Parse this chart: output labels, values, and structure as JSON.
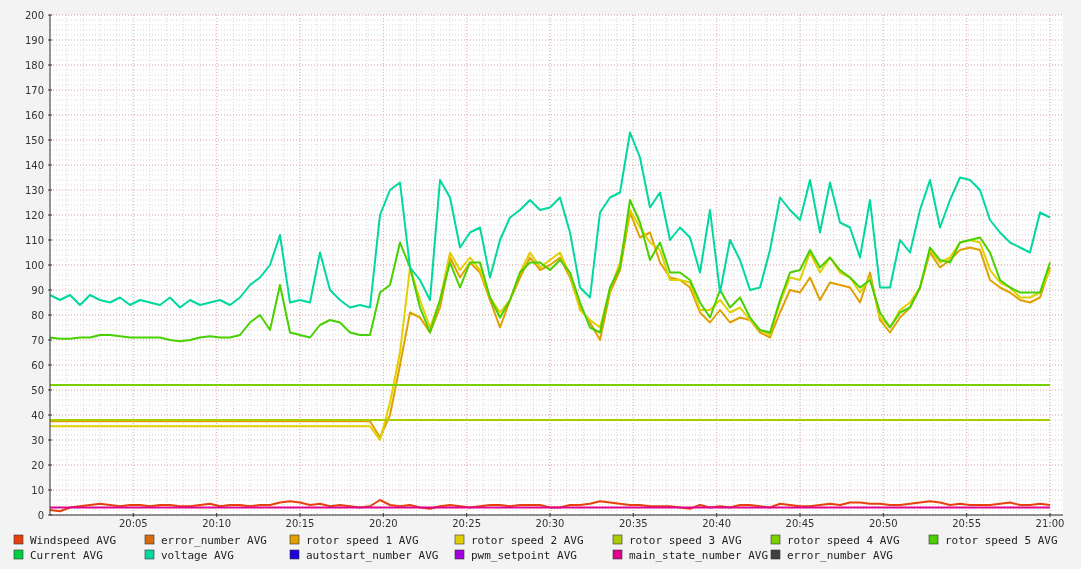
{
  "chart_data": {
    "type": "line",
    "x": [
      20,
      20.01,
      20.02,
      20.03,
      20.04,
      20.05,
      20.06,
      20.07,
      20.08,
      20.09,
      20.1,
      20.11,
      20.12,
      20.13,
      20.14,
      20.15,
      20.16,
      20.17,
      20.18,
      20.19,
      20.2,
      20.21,
      20.22,
      20.23,
      20.24,
      20.25,
      20.26,
      20.27,
      20.28,
      20.29,
      20.3,
      20.31,
      20.32,
      20.33,
      20.34,
      20.35,
      20.36,
      20.37,
      20.38,
      20.39,
      20.4,
      20.41,
      20.42,
      20.43,
      20.44,
      20.45,
      20.46,
      20.47,
      20.48,
      20.49,
      20.5,
      20.51,
      20.52,
      20.53,
      20.54,
      20.55,
      20.56,
      20.57,
      20.58,
      20.59,
      20.6,
      20.61,
      20.62,
      20.63,
      20.64,
      20.65,
      20.66,
      20.67,
      20.68,
      20.69,
      20.7,
      20.71,
      20.72,
      20.73,
      20.74,
      20.75,
      20.76,
      20.77,
      20.78,
      20.79,
      20.8,
      20.81,
      20.82,
      20.83,
      20.84,
      20.85,
      20.86,
      20.87,
      20.88,
      20.89,
      20.9,
      20.91,
      20.92,
      20.93,
      20.94,
      20.95,
      20.96,
      20.97,
      20.98,
      20.99,
      21
    ],
    "series": [
      {
        "name": "Windspeed AVG",
        "color": "#e8400c",
        "values": [
          2,
          1.5,
          3,
          3.5,
          4,
          4.5,
          4,
          3.5,
          4,
          4,
          3.5,
          4,
          4,
          3.5,
          3.5,
          4,
          4.5,
          3.5,
          4,
          4,
          3.5,
          4,
          4,
          5,
          5.5,
          5,
          4,
          4.5,
          3.5,
          4,
          3.5,
          3,
          3.5,
          6,
          4,
          3.5,
          4,
          3,
          2.5,
          3.5,
          4,
          3.5,
          3,
          3.5,
          4,
          4,
          3.5,
          4,
          4,
          4,
          3,
          3,
          4,
          4,
          4.5,
          5.5,
          5,
          4.5,
          4,
          4,
          3.5,
          3.5,
          3.5,
          3,
          2.5,
          4,
          3,
          3.5,
          3,
          4,
          4,
          3.5,
          3,
          4.5,
          4,
          3.5,
          3.5,
          4,
          4.5,
          4,
          5,
          5,
          4.5,
          4.5,
          4,
          4,
          4.5,
          5,
          5.5,
          5,
          4,
          4.5,
          4,
          4,
          4,
          4.5,
          5,
          4,
          4,
          4.5,
          4
        ]
      },
      {
        "name": "error_number AVG",
        "color": "#d86a10",
        "values": [
          null,
          null,
          null,
          null,
          null,
          null,
          null,
          null,
          null,
          null,
          null,
          null,
          null,
          null,
          null,
          null,
          null,
          null,
          null,
          null,
          null,
          null,
          null,
          null,
          null,
          null,
          null,
          null,
          null,
          null,
          null,
          null,
          null,
          null,
          null,
          null,
          null,
          null,
          null,
          null,
          null,
          null,
          null,
          null,
          null,
          null,
          null,
          null,
          null,
          null,
          null,
          null,
          null,
          null,
          null,
          null,
          null,
          null,
          null,
          null,
          null,
          null,
          null,
          null,
          null,
          null,
          null,
          null,
          null,
          null,
          null,
          null,
          null,
          null,
          null,
          null,
          null,
          null,
          null,
          null,
          null,
          null,
          null,
          null,
          null,
          null,
          null,
          null,
          null,
          null,
          null,
          null,
          null,
          null,
          null,
          null,
          null,
          null,
          null,
          null,
          null
        ]
      },
      {
        "name": "rotor speed 1 AVG",
        "color": "#e0a000",
        "values": [
          37.5,
          37.5,
          37.5,
          37.5,
          37.5,
          37.5,
          37.5,
          37.5,
          37.5,
          37.5,
          37.5,
          37.5,
          37.5,
          37.5,
          37.5,
          37.5,
          37.5,
          37.5,
          37.5,
          37.5,
          37.5,
          37.5,
          37.5,
          37.5,
          37.5,
          37.5,
          37.5,
          37.5,
          37.5,
          37.5,
          37.5,
          37.5,
          37.5,
          31,
          40,
          60,
          81,
          79,
          73,
          83,
          103,
          95,
          101,
          97,
          86,
          75,
          86,
          95,
          103,
          98,
          100,
          103,
          95,
          83,
          77,
          70,
          89,
          98,
          121,
          111,
          113,
          101,
          95,
          94,
          91,
          81,
          77,
          82,
          77,
          79,
          78,
          73,
          71,
          81,
          90,
          89,
          95,
          86,
          93,
          92,
          91,
          85,
          97,
          78,
          73,
          79,
          83,
          91,
          105,
          99,
          102,
          106,
          107,
          106,
          94,
          91,
          89,
          86,
          85,
          87,
          99
        ]
      },
      {
        "name": "rotor speed 2 AVG",
        "color": "#e0d000",
        "values": [
          35.5,
          35.5,
          35.5,
          35.5,
          35.5,
          35.5,
          35.5,
          35.5,
          35.5,
          35.5,
          35.5,
          35.5,
          35.5,
          35.5,
          35.5,
          35.5,
          35.5,
          35.5,
          35.5,
          35.5,
          35.5,
          35.5,
          35.5,
          35.5,
          35.5,
          35.5,
          35.5,
          35.5,
          35.5,
          35.5,
          35.5,
          35.5,
          35.5,
          30,
          45,
          65,
          99,
          86,
          75,
          86,
          105,
          98,
          103,
          98,
          87,
          81,
          86,
          97,
          105,
          99,
          102,
          105,
          96,
          82,
          78,
          75,
          90,
          101,
          122,
          115,
          109,
          106,
          94,
          94,
          93,
          82,
          82,
          86,
          81,
          83,
          78,
          74,
          72,
          85,
          95,
          94,
          105,
          97,
          103,
          97,
          95,
          89,
          95,
          79,
          75,
          82,
          85,
          91,
          106,
          101,
          103,
          109,
          110,
          109,
          98,
          93,
          91,
          87,
          87,
          89,
          98
        ]
      },
      {
        "name": "rotor speed 3 AVG",
        "color": "#a8cc00",
        "values": [
          38,
          38,
          38,
          38,
          38,
          38,
          38,
          38,
          38,
          38,
          38,
          38,
          38,
          38,
          38,
          38,
          38,
          38,
          38,
          38,
          38,
          38,
          38,
          38,
          38,
          38,
          38,
          38,
          38,
          38,
          38,
          38,
          38,
          38,
          38,
          38,
          38,
          38,
          38,
          38,
          38,
          38,
          38,
          38,
          38,
          38,
          38,
          38,
          38,
          38,
          38,
          38,
          38,
          38,
          38,
          38,
          38,
          38,
          38,
          38,
          38,
          38,
          38,
          38,
          38,
          38,
          38,
          38,
          38,
          38,
          38,
          38,
          38,
          38,
          38,
          38,
          38,
          38,
          38,
          38,
          38,
          38,
          38,
          38,
          38,
          38,
          38,
          38,
          38,
          38,
          38,
          38,
          38,
          38,
          38,
          38,
          38,
          38,
          38,
          38,
          38
        ]
      },
      {
        "name": "rotor speed 4 AVG",
        "color": "#78d000",
        "values": [
          52,
          52,
          52,
          52,
          52,
          52,
          52,
          52,
          52,
          52,
          52,
          52,
          52,
          52,
          52,
          52,
          52,
          52,
          52,
          52,
          52,
          52,
          52,
          52,
          52,
          52,
          52,
          52,
          52,
          52,
          52,
          52,
          52,
          52,
          52,
          52,
          52,
          52,
          52,
          52,
          52,
          52,
          52,
          52,
          52,
          52,
          52,
          52,
          52,
          52,
          52,
          52,
          52,
          52,
          52,
          52,
          52,
          52,
          52,
          52,
          52,
          52,
          52,
          52,
          52,
          52,
          52,
          52,
          52,
          52,
          52,
          52,
          52,
          52,
          52,
          52,
          52,
          52,
          52,
          52,
          52,
          52,
          52,
          52,
          52,
          52,
          52,
          52,
          52,
          52,
          52,
          52,
          52,
          52,
          52,
          52,
          52,
          52,
          52,
          52,
          52
        ]
      },
      {
        "name": "rotor speed 5 AVG",
        "color": "#48d000",
        "values": [
          71,
          70.5,
          70.5,
          71,
          71,
          72,
          72,
          71.5,
          71,
          71,
          71,
          71,
          70,
          69.5,
          70,
          71,
          71.5,
          71,
          71,
          72,
          77,
          80,
          74,
          92,
          73,
          72,
          71,
          76,
          78,
          77,
          73,
          72,
          72,
          89,
          92,
          109,
          99,
          83,
          73,
          86,
          101,
          91,
          101,
          101,
          87,
          79,
          86,
          97,
          101,
          101,
          98,
          102,
          97,
          85,
          75,
          73,
          91,
          99,
          126,
          117,
          102,
          109,
          97,
          97,
          94,
          85,
          79,
          90,
          83,
          87,
          79,
          74,
          73,
          86,
          97,
          98,
          106,
          99,
          103,
          98,
          95,
          91,
          94,
          81,
          75,
          81,
          83,
          91,
          107,
          102,
          101,
          109,
          110,
          111,
          105,
          94,
          91,
          89,
          89,
          89,
          101
        ]
      },
      {
        "name": "Current AVG",
        "color": "#00d040",
        "values": [
          null,
          null,
          null,
          null,
          null,
          null,
          null,
          null,
          null,
          null,
          null,
          null,
          null,
          null,
          null,
          null,
          null,
          null,
          null,
          null,
          null,
          null,
          null,
          null,
          null,
          null,
          null,
          null,
          null,
          null,
          null,
          null,
          null,
          null,
          null,
          null,
          null,
          null,
          null,
          null,
          null,
          null,
          null,
          null,
          null,
          null,
          null,
          null,
          null,
          null,
          null,
          null,
          null,
          null,
          null,
          null,
          null,
          null,
          null,
          null,
          null,
          null,
          null,
          null,
          null,
          null,
          null,
          null,
          null,
          null,
          null,
          null,
          null,
          null,
          null,
          null,
          null,
          null,
          null,
          null,
          null,
          null,
          null,
          null,
          null,
          null,
          null,
          null,
          null,
          null,
          null,
          null,
          null,
          null,
          null,
          null,
          null,
          null,
          null,
          null,
          null
        ]
      },
      {
        "name": "voltage AVG",
        "color": "#00d8a0",
        "values": [
          88,
          86,
          88,
          84,
          88,
          86,
          85,
          87,
          84,
          86,
          85,
          84,
          87,
          83,
          86,
          84,
          85,
          86,
          84,
          87,
          92,
          95,
          100,
          112,
          85,
          86,
          85,
          105,
          90,
          86,
          83,
          84,
          83,
          120,
          130,
          133,
          99,
          94,
          86,
          134,
          127,
          107,
          113,
          115,
          95,
          110,
          119,
          122,
          126,
          122,
          123,
          127,
          113,
          91,
          87,
          121,
          127,
          129,
          153,
          143,
          123,
          129,
          110,
          115,
          111,
          97,
          122,
          89,
          110,
          102,
          90,
          91,
          106,
          127,
          122,
          118,
          134,
          113,
          133,
          117,
          115,
          103,
          126,
          91,
          91,
          110,
          105,
          122,
          134,
          115,
          126,
          135,
          134,
          130,
          118,
          113,
          109,
          107,
          105,
          121,
          119
        ]
      },
      {
        "name": "autostart_number AVG",
        "color": "#2000e0",
        "values": [
          null,
          null,
          null,
          null,
          null,
          null,
          null,
          null,
          null,
          null,
          null,
          null,
          null,
          null,
          null,
          null,
          null,
          null,
          null,
          null,
          null,
          null,
          null,
          null,
          null,
          null,
          null,
          null,
          null,
          null,
          null,
          null,
          null,
          null,
          null,
          null,
          null,
          null,
          null,
          null,
          null,
          null,
          null,
          null,
          null,
          null,
          null,
          null,
          null,
          null,
          null,
          null,
          null,
          null,
          null,
          null,
          null,
          null,
          null,
          null,
          null,
          null,
          null,
          null,
          null,
          null,
          null,
          null,
          null,
          null,
          null,
          null,
          null,
          null,
          null,
          null,
          null,
          null,
          null,
          null,
          null,
          null,
          null,
          null,
          null,
          null,
          null,
          null,
          null,
          null,
          null,
          null,
          null,
          null,
          null,
          null,
          null,
          null,
          null,
          null,
          null
        ]
      },
      {
        "name": "pwm_setpoint AVG",
        "color": "#a000e0",
        "values": [
          null,
          null,
          null,
          null,
          null,
          null,
          null,
          null,
          null,
          null,
          null,
          null,
          null,
          null,
          null,
          null,
          null,
          null,
          null,
          null,
          null,
          null,
          null,
          null,
          null,
          null,
          null,
          null,
          null,
          null,
          null,
          null,
          null,
          null,
          null,
          null,
          null,
          null,
          null,
          null,
          null,
          null,
          null,
          null,
          null,
          null,
          null,
          null,
          null,
          null,
          null,
          null,
          null,
          null,
          null,
          null,
          null,
          null,
          null,
          null,
          null,
          null,
          null,
          null,
          null,
          null,
          null,
          null,
          null,
          null,
          null,
          null,
          null,
          null,
          null,
          null,
          null,
          null,
          null,
          null,
          null,
          null,
          null,
          null,
          null,
          null,
          null,
          null,
          null,
          null,
          null,
          null,
          null,
          null,
          null,
          null,
          null,
          null,
          null,
          null,
          null
        ]
      },
      {
        "name": "main_state_number AVG",
        "color": "#e00090",
        "values": [
          3,
          3,
          3,
          3,
          3,
          3,
          3,
          3,
          3,
          3,
          3,
          3,
          3,
          3,
          3,
          3,
          3,
          3,
          3,
          3,
          3,
          3,
          3,
          3,
          3,
          3,
          3,
          3,
          3,
          3,
          3,
          3,
          3,
          3,
          3,
          3,
          3,
          3,
          3,
          3,
          3,
          3,
          3,
          3,
          3,
          3,
          3,
          3,
          3,
          3,
          3,
          3,
          3,
          3,
          3,
          3,
          3,
          3,
          3,
          3,
          3,
          3,
          3,
          3,
          3,
          3,
          3,
          3,
          3,
          3,
          3,
          3,
          3,
          3,
          3,
          3,
          3,
          3,
          3,
          3,
          3,
          3,
          3,
          3,
          3,
          3,
          3,
          3,
          3,
          3,
          3,
          3,
          3,
          3,
          3,
          3,
          3,
          3,
          3,
          3,
          3
        ]
      },
      {
        "name": "error_number AVG",
        "color": "#404040",
        "values": [
          null,
          null,
          null,
          null,
          null,
          null,
          null,
          null,
          null,
          null,
          null,
          null,
          null,
          null,
          null,
          null,
          null,
          null,
          null,
          null,
          null,
          null,
          null,
          null,
          null,
          null,
          null,
          null,
          null,
          null,
          null,
          null,
          null,
          null,
          null,
          null,
          null,
          null,
          null,
          null,
          null,
          null,
          null,
          null,
          null,
          null,
          null,
          null,
          null,
          null,
          null,
          null,
          null,
          null,
          null,
          null,
          null,
          null,
          null,
          null,
          null,
          null,
          null,
          null,
          null,
          null,
          null,
          null,
          null,
          null,
          null,
          null,
          null,
          null,
          null,
          null,
          null,
          null,
          null,
          null,
          null,
          null,
          null,
          null,
          null,
          null,
          null,
          null,
          null,
          null,
          null,
          null,
          null,
          null,
          null,
          null,
          null,
          null,
          null,
          null,
          null
        ]
      }
    ],
    "xlim": [
      20,
      21.013
    ],
    "xticks": [
      {
        "value": 20.0833333,
        "label": "20:05"
      },
      {
        "value": 20.1666667,
        "label": "20:10"
      },
      {
        "value": 20.25,
        "label": "20:15"
      },
      {
        "value": 20.3333333,
        "label": "20:20"
      },
      {
        "value": 20.4166667,
        "label": "20:25"
      },
      {
        "value": 20.5,
        "label": "20:30"
      },
      {
        "value": 20.5833333,
        "label": "20:35"
      },
      {
        "value": 20.6666667,
        "label": "20:40"
      },
      {
        "value": 20.75,
        "label": "20:45"
      },
      {
        "value": 20.8333333,
        "label": "20:50"
      },
      {
        "value": 20.9166667,
        "label": "20:55"
      },
      {
        "value": 21,
        "label": "21:00"
      }
    ],
    "ylim": [
      0,
      200
    ],
    "yticks": [
      0,
      10,
      20,
      30,
      40,
      50,
      60,
      70,
      80,
      90,
      100,
      110,
      120,
      130,
      140,
      150,
      160,
      170,
      180,
      190,
      200
    ],
    "grid": true,
    "legend": "bottom",
    "marker": "none",
    "line_style": "solid"
  }
}
